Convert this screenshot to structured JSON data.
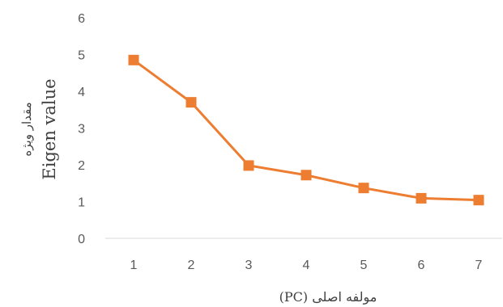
{
  "chart_data": {
    "type": "line",
    "x": [
      1,
      2,
      3,
      4,
      5,
      6,
      7
    ],
    "series": [
      {
        "values": [
          4.85,
          3.7,
          1.98,
          1.72,
          1.37,
          1.09,
          1.04
        ]
      }
    ],
    "xlabel": "مولفه اصلی (PC)",
    "ylabel_fa": "مقدار ویژه",
    "ylabel_en": "Eigen value",
    "ylim": [
      0,
      6
    ],
    "yticks": [
      0,
      1,
      2,
      3,
      4,
      5,
      6
    ],
    "xticks": [
      1,
      2,
      3,
      4,
      5,
      6,
      7
    ],
    "grid": false,
    "line_color": "#ED7D31",
    "marker": "square"
  }
}
